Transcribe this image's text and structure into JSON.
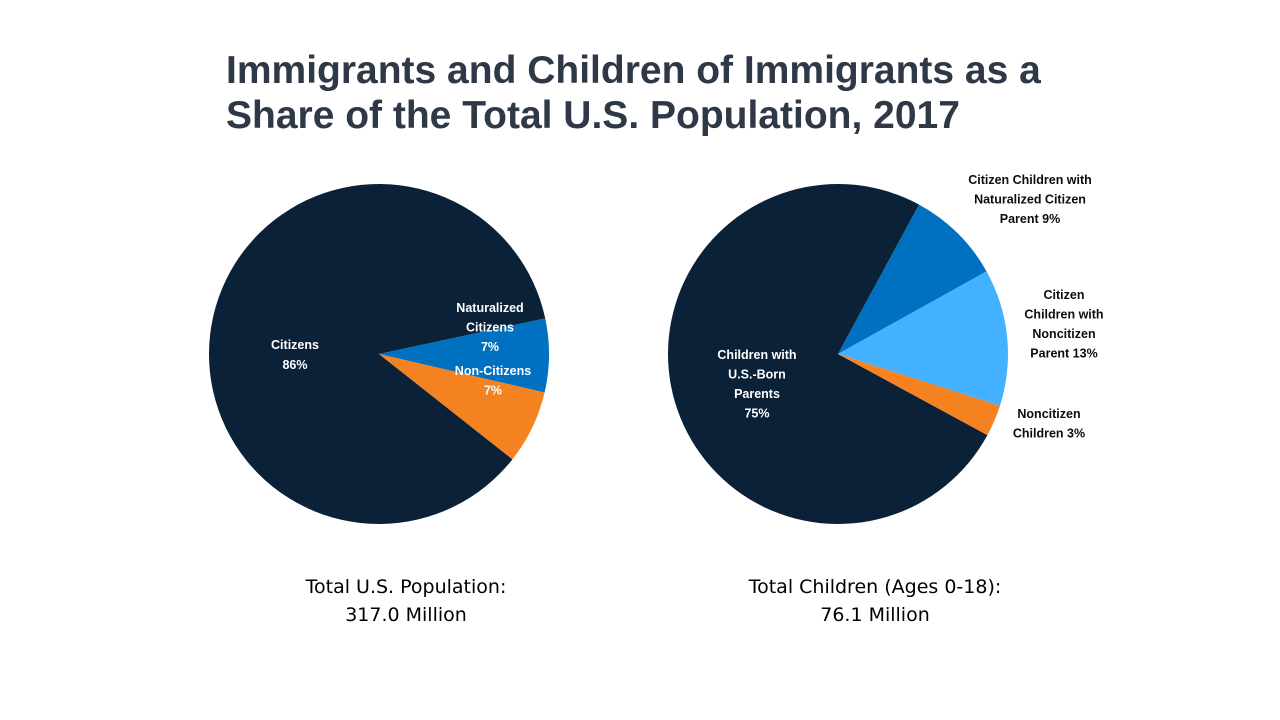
{
  "title": {
    "line1": "Immigrants and Children of Immigrants as a",
    "line2": "Share of the Total U.S. Population, 2017"
  },
  "colors": {
    "title": "#2e3847",
    "navy": "#0a2137",
    "blue": "#0070c0",
    "light_blue": "#43b1ff",
    "orange": "#f58220",
    "white": "#ffffff",
    "dark_text": "#0d0d0d"
  },
  "chart_data": [
    {
      "type": "pie",
      "title": "Total U.S. Population",
      "caption_line1": "Total U.S. Population:",
      "caption_line2": "317.0 Million",
      "slices": [
        {
          "name": "Citizens",
          "value": 86,
          "label_lines": [
            "Citizens",
            "86%"
          ],
          "color": "#0a2137",
          "label_color": "#ffffff"
        },
        {
          "name": "Naturalized Citizens",
          "value": 7,
          "label_lines": [
            "Naturalized",
            "Citizens",
            "7%"
          ],
          "color": "#0070c0",
          "label_color": "#ffffff"
        },
        {
          "name": "Non-Citizens",
          "value": 7,
          "label_lines": [
            "Non-Citizens",
            "7%"
          ],
          "color": "#f58220",
          "label_color": "#ffffff"
        }
      ]
    },
    {
      "type": "pie",
      "title": "Total Children (Ages 0-18)",
      "caption_line1": "Total Children (Ages 0-18):",
      "caption_line2": "76.1 Million",
      "slices": [
        {
          "name": "Children with U.S.-Born Parents",
          "value": 75,
          "label_lines": [
            "Children with",
            "U.S.-Born",
            "Parents",
            "75%"
          ],
          "color": "#0a2137",
          "label_color": "#ffffff"
        },
        {
          "name": "Citizen Children with Naturalized Citizen Parent",
          "value": 9,
          "label_lines": [
            "Citizen Children with",
            "Naturalized Citizen",
            "Parent 9%"
          ],
          "color": "#0070c0",
          "label_color": "#0d0d0d"
        },
        {
          "name": "Citizen Children with Noncitizen Parent",
          "value": 13,
          "label_lines": [
            "Citizen",
            "Children with",
            "Noncitizen",
            "Parent 13%"
          ],
          "color": "#43b1ff",
          "label_color": "#0d0d0d"
        },
        {
          "name": "Noncitizen Children",
          "value": 3,
          "label_lines": [
            "Noncitizen",
            "Children 3%"
          ],
          "color": "#f58220",
          "label_color": "#0d0d0d"
        }
      ]
    }
  ]
}
